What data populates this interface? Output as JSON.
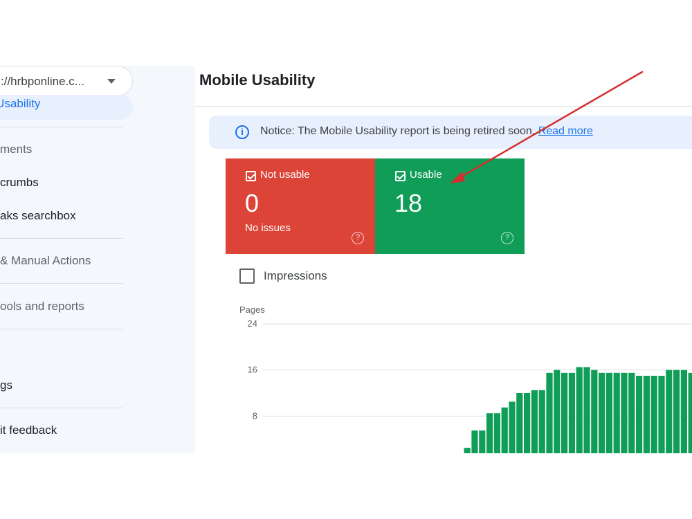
{
  "sidebar": {
    "property_url": "://hrbponline.c...",
    "active_item": "e Usability",
    "items": [
      {
        "label": "ments",
        "kind": "section"
      },
      {
        "label": "crumbs",
        "kind": "link"
      },
      {
        "label": "aks searchbox",
        "kind": "link"
      },
      {
        "label": "& Manual Actions",
        "kind": "section"
      },
      {
        "label": "ools and reports",
        "kind": "section"
      },
      {
        "label": "gs",
        "kind": "link"
      },
      {
        "label": "it feedback",
        "kind": "link"
      }
    ]
  },
  "main": {
    "title": "Mobile Usability",
    "notice": {
      "text": "Notice: The Mobile Usability report is being retired soon.",
      "link": "Read more"
    },
    "tiles": {
      "not_usable": {
        "label": "Not usable",
        "value": "0",
        "sub": "No issues"
      },
      "usable": {
        "label": "Usable",
        "value": "18"
      }
    },
    "impressions_label": "Impressions"
  },
  "colors": {
    "not_usable": "#db4437",
    "usable": "#0f9d58",
    "accent": "#1a73e8",
    "annotation": "#d32f2f"
  },
  "chart_data": {
    "type": "bar",
    "ylabel": "Pages",
    "yticks": [
      24,
      16,
      8
    ],
    "ylim": [
      0,
      24
    ],
    "grid": true,
    "series": [
      {
        "values": [
          0.5,
          1.5,
          2.5,
          5.5,
          5.5,
          8.5,
          8.5,
          9.5,
          10.5,
          12,
          12,
          12.5,
          12.5,
          15.5,
          16,
          15.5,
          15.5,
          16.5,
          16.5,
          16,
          15.5,
          15.5,
          15.5,
          15.5,
          15.5,
          15,
          15,
          15,
          15,
          16,
          16,
          16,
          15.5,
          15.5,
          15.5
        ]
      }
    ]
  }
}
